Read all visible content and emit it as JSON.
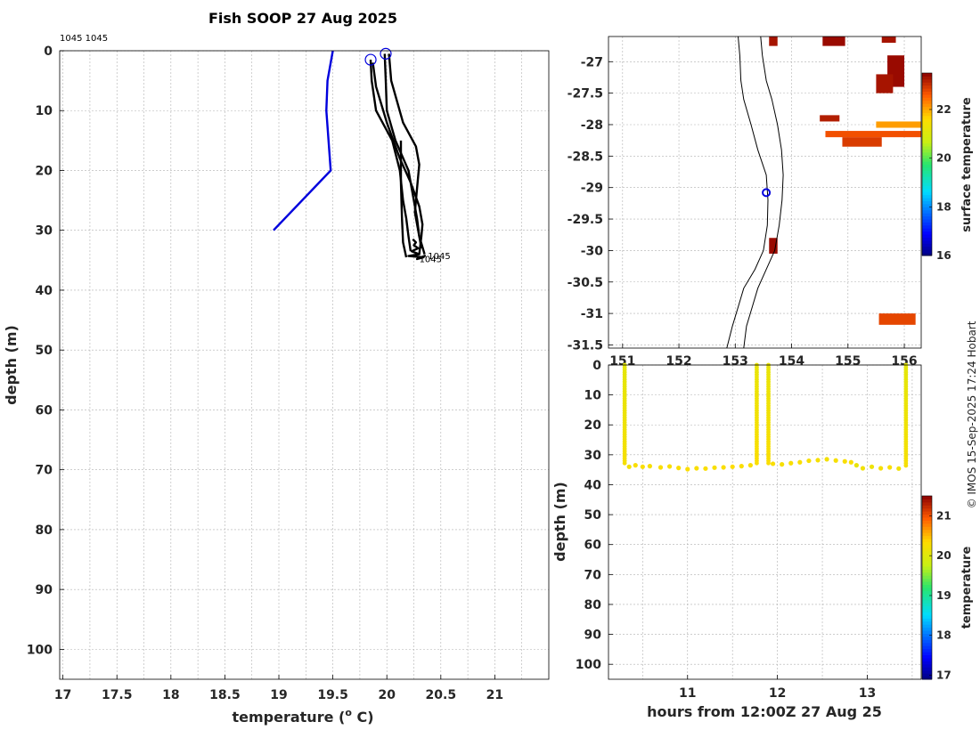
{
  "title": "Fish SOOP 27 Aug 2025",
  "credit": "© IMOS 15-Sep-2025 17:24 Hobart",
  "chart_data": [
    {
      "type": "line",
      "name": "profile",
      "xlabel": "temperature (",
      "xlabel_sup": "o",
      "xlabel_tail": " C)",
      "ylabel": "depth (m)",
      "xlim": [
        16.97,
        21.5
      ],
      "ylim": [
        105,
        0
      ],
      "xticks": [
        17,
        17.5,
        18,
        18.5,
        19,
        19.5,
        20,
        20.5,
        21
      ],
      "xtick_labels": [
        "17",
        "17.5",
        "18",
        "18.5",
        "19",
        "19.5",
        "20",
        "20.5",
        "21"
      ],
      "yticks": [
        0,
        10,
        20,
        30,
        40,
        50,
        60,
        70,
        80,
        90,
        100
      ],
      "ytick_labels": [
        "0",
        "10",
        "20",
        "30",
        "40",
        "50",
        "60",
        "70",
        "80",
        "90",
        "100"
      ],
      "top_label": "1045 1045",
      "end_labels": [
        "1045",
        "1045"
      ],
      "series": [
        {
          "color": "#0000dd",
          "t": [
            19.5,
            19.45,
            19.44,
            19.48,
            18.95
          ],
          "d": [
            0,
            5,
            10,
            20,
            30
          ]
        },
        {
          "color": "#000000",
          "t": [
            19.85,
            19.86,
            19.9,
            20.05,
            20.12,
            20.15,
            20.18,
            20.2,
            20.22
          ],
          "d": [
            1.5,
            5,
            10,
            15,
            20,
            25,
            28,
            31,
            33.5
          ]
        },
        {
          "color": "#000000",
          "t": [
            19.98,
            19.99,
            20.0,
            20.08,
            20.2,
            20.25,
            20.28,
            20.3,
            20.32
          ],
          "d": [
            0.5,
            5,
            10,
            15,
            20,
            25,
            28,
            31,
            33
          ]
        },
        {
          "color": "#000000",
          "t": [
            19.87,
            19.9,
            20.0,
            20.12,
            20.22,
            20.3,
            20.33,
            20.32,
            20.3
          ],
          "d": [
            2,
            6,
            12,
            18,
            22,
            26,
            29,
            31,
            34
          ]
        },
        {
          "color": "#000000",
          "t": [
            20.02,
            20.04,
            20.15,
            20.27,
            20.3,
            20.28,
            20.26,
            20.3,
            20.35
          ],
          "d": [
            0.5,
            5,
            12,
            16,
            19,
            23,
            27,
            31,
            34
          ]
        },
        {
          "color": "#000000",
          "t": [
            20.13,
            20.13,
            20.14,
            20.15,
            20.18
          ],
          "d": [
            15,
            22,
            28,
            32,
            34.5
          ]
        },
        {
          "color": "#000000",
          "t": [
            20.24,
            20.27,
            20.25,
            20.29,
            20.23,
            20.3,
            20.2,
            20.34,
            20.28,
            20.36
          ],
          "d": [
            31.5,
            32,
            32.5,
            33,
            33.5,
            34,
            34.3,
            34.5,
            34.8,
            34.2
          ]
        }
      ],
      "markers": [
        {
          "t": 19.85,
          "d": 1.5
        },
        {
          "t": 19.99,
          "d": 0.5
        }
      ]
    },
    {
      "type": "heatmap",
      "name": "map",
      "xlim": [
        150.75,
        156.3
      ],
      "ylim": [
        -31.55,
        -26.6
      ],
      "xticks": [
        151,
        152,
        153,
        154,
        155,
        156
      ],
      "xtick_labels": [
        "151",
        "152",
        "153",
        "154",
        "155",
        "156"
      ],
      "yticks": [
        -27,
        -27.5,
        -28,
        -28.5,
        -29,
        -29.5,
        -30,
        -30.5,
        -31,
        -31.5
      ],
      "ytick_labels": [
        "-27",
        "-27.5",
        "-28",
        "-28.5",
        "-29",
        "-29.5",
        "-30",
        "-30.5",
        "-31",
        "-31.5"
      ],
      "colorbar_label": "surface temperature",
      "colorbar_range": [
        16,
        23.5
      ],
      "colorbar_ticks": [
        16,
        18,
        20,
        22
      ],
      "colorbar_tick_labels": [
        "16",
        "18",
        "20",
        "22"
      ],
      "coast": {
        "lon": [
          153.05,
          153.08,
          153.1,
          153.15,
          153.28,
          153.4,
          153.55,
          153.58,
          153.57,
          153.5,
          153.35,
          153.15,
          153.05,
          152.95,
          152.85
        ],
        "lat": [
          -26.6,
          -26.9,
          -27.3,
          -27.6,
          -28.0,
          -28.4,
          -28.8,
          -29.2,
          -29.6,
          -30.0,
          -30.3,
          -30.6,
          -30.9,
          -31.2,
          -31.55
        ]
      },
      "shelf": {
        "lon": [
          153.45,
          153.48,
          153.55,
          153.65,
          153.75,
          153.82,
          153.85,
          153.83,
          153.78,
          153.7,
          153.55,
          153.4,
          153.3,
          153.2,
          153.15
        ],
        "lat": [
          -26.6,
          -26.9,
          -27.3,
          -27.6,
          -28.0,
          -28.4,
          -28.8,
          -29.2,
          -29.6,
          -30.0,
          -30.3,
          -30.6,
          -30.9,
          -31.2,
          -31.55
        ]
      },
      "track": {
        "lon": 153.55,
        "lat": -29.08
      },
      "patches": [
        {
          "lon": [
            153.6,
            153.75
          ],
          "lat": [
            -26.6,
            -26.75
          ],
          "value": 23.3
        },
        {
          "lon": [
            154.55,
            154.95
          ],
          "lat": [
            -26.6,
            -26.75
          ],
          "value": 23.4
        },
        {
          "lon": [
            155.6,
            155.85
          ],
          "lat": [
            -26.6,
            -26.7
          ],
          "value": 23.3
        },
        {
          "lon": [
            155.7,
            156.0
          ],
          "lat": [
            -26.9,
            -27.4
          ],
          "value": 23.4
        },
        {
          "lon": [
            155.5,
            155.8
          ],
          "lat": [
            -27.2,
            -27.5
          ],
          "value": 23.3
        },
        {
          "lon": [
            154.5,
            154.85
          ],
          "lat": [
            -27.85,
            -27.95
          ],
          "value": 23.2
        },
        {
          "lon": [
            154.6,
            156.3
          ],
          "lat": [
            -28.1,
            -28.2
          ],
          "value": 22.7
        },
        {
          "lon": [
            155.5,
            156.3
          ],
          "lat": [
            -27.95,
            -28.05
          ],
          "value": 22.1
        },
        {
          "lon": [
            154.9,
            155.6
          ],
          "lat": [
            -28.2,
            -28.35
          ],
          "value": 22.9
        },
        {
          "lon": [
            155.55,
            156.2
          ],
          "lat": [
            -31.0,
            -31.18
          ],
          "value": 22.8
        },
        {
          "lon": [
            153.6,
            153.75
          ],
          "lat": [
            -29.8,
            -30.05
          ],
          "value": 23.4
        }
      ]
    },
    {
      "type": "scatter",
      "name": "section",
      "xlabel": "hours from 12:00Z 27 Aug 25",
      "ylabel": "depth (m)",
      "xlim": [
        10.12,
        13.6
      ],
      "ylim": [
        105,
        0
      ],
      "xticks": [
        11,
        12,
        13
      ],
      "xtick_labels": [
        "11",
        "12",
        "13"
      ],
      "yticks": [
        0,
        10,
        20,
        30,
        40,
        50,
        60,
        70,
        80,
        90,
        100
      ],
      "ytick_labels": [
        "0",
        "10",
        "20",
        "30",
        "40",
        "50",
        "60",
        "70",
        "80",
        "90",
        "100"
      ],
      "colorbar_label": "temperature",
      "colorbar_range": [
        16.9,
        21.5
      ],
      "colorbar_ticks": [
        17,
        18,
        19,
        20,
        21
      ],
      "colorbar_tick_labels": [
        "17",
        "18",
        "19",
        "20",
        "21"
      ],
      "casts": [
        {
          "hour": 10.3,
          "bottom": 33.5,
          "t_top": 20.05,
          "t_bottom": 20.25
        },
        {
          "hour": 11.77,
          "bottom": 33,
          "t_top": 20.1,
          "t_bottom": 20.3
        },
        {
          "hour": 11.9,
          "bottom": 33,
          "t_top": 20.1,
          "t_bottom": 20.3
        },
        {
          "hour": 13.43,
          "bottom": 34,
          "t_top": 20.05,
          "t_bottom": 20.25
        }
      ],
      "bottom_points": {
        "hour": [
          10.35,
          10.42,
          10.5,
          10.58,
          10.7,
          10.8,
          10.9,
          11.0,
          11.1,
          11.2,
          11.3,
          11.4,
          11.5,
          11.6,
          11.7,
          11.95,
          12.05,
          12.15,
          12.25,
          12.35,
          12.45,
          12.55,
          12.65,
          12.75,
          12.82,
          12.88,
          12.95,
          13.05,
          13.15,
          13.25,
          13.35
        ],
        "depth": [
          34,
          33.5,
          34,
          33.8,
          34.2,
          33.9,
          34.4,
          34.8,
          34.5,
          34.6,
          34.3,
          34.2,
          34.0,
          33.8,
          33.5,
          33,
          33.2,
          32.8,
          32.5,
          32,
          31.8,
          31.5,
          31.9,
          32.2,
          32.5,
          33.5,
          34.5,
          34,
          34.5,
          34.2,
          34.6
        ],
        "temp": [
          20.22,
          20.3,
          20.28,
          20.25,
          20.3,
          20.27,
          20.3,
          20.32,
          20.28,
          20.3,
          20.27,
          20.3,
          20.33,
          20.3,
          20.28,
          20.3,
          20.25,
          20.28,
          20.3,
          20.27,
          20.25,
          20.22,
          20.25,
          20.28,
          20.3,
          20.1,
          20.2,
          20.15,
          20.25,
          20.3,
          20.2
        ]
      }
    }
  ]
}
